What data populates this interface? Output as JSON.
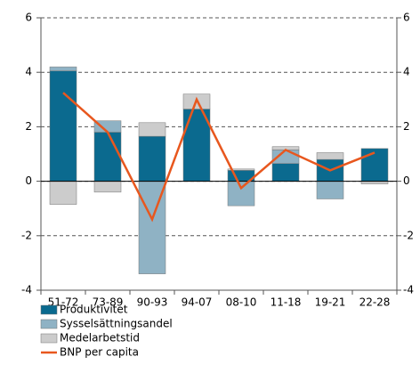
{
  "chart_data": {
    "type": "bar",
    "stacked": true,
    "categories": [
      "51-72",
      "73-89",
      "90-93",
      "94-07",
      "08-10",
      "11-18",
      "19-21",
      "22-28"
    ],
    "series": [
      {
        "name": "Produktivitet",
        "type": "bar",
        "color": "#0b6a8f",
        "values": [
          4.05,
          1.8,
          1.65,
          2.65,
          0.4,
          0.65,
          0.8,
          1.2
        ]
      },
      {
        "name": "Sysselsättningsandel",
        "type": "bar",
        "color": "#8fb2c4",
        "values": [
          0.15,
          0.42,
          -3.4,
          0,
          -0.9,
          0.5,
          -0.65,
          0
        ]
      },
      {
        "name": "Medelarbetstid",
        "type": "bar",
        "color": "#cccccc",
        "values": [
          -0.85,
          -0.4,
          0.5,
          0.55,
          0.05,
          0.12,
          0.25,
          -0.1
        ]
      },
      {
        "name": "BNP per capita",
        "type": "line",
        "color": "#e8571e",
        "values": [
          3.25,
          1.8,
          -1.4,
          3.0,
          -0.25,
          1.15,
          0.4,
          1.05
        ]
      }
    ],
    "ylim": [
      -4,
      6
    ],
    "yticks": [
      -4,
      -2,
      0,
      2,
      4,
      6
    ],
    "y2lim": [
      -4,
      6
    ],
    "y2ticks": [
      -4,
      -2,
      0,
      2,
      4,
      6
    ],
    "grid": true,
    "legend": "bottom"
  }
}
